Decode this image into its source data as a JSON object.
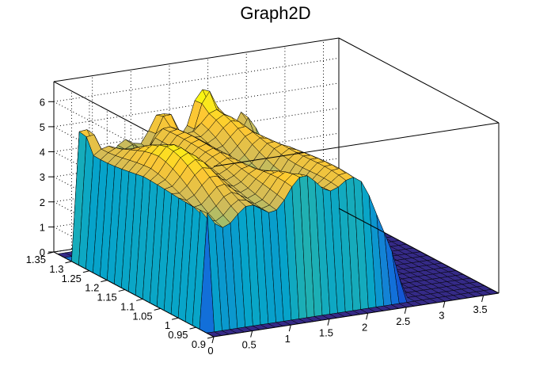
{
  "chart_data": {
    "type": "surface3d",
    "title": "Graph2D",
    "x_axis": {
      "range": [
        0,
        3.7
      ],
      "ticks": [
        "0",
        "0.5",
        "1",
        "1.5",
        "2",
        "2.5",
        "3",
        "3.5"
      ],
      "tick_values": [
        0,
        0.5,
        1,
        1.5,
        2,
        2.5,
        3,
        3.5
      ]
    },
    "y_axis": {
      "range": [
        0.9,
        1.35
      ],
      "ticks": [
        "0.9",
        "0.95",
        "1",
        "1.05",
        "1.1",
        "1.15",
        "1.2",
        "1.25",
        "1.3",
        "1.35"
      ],
      "tick_values": [
        0.9,
        0.95,
        1.0,
        1.05,
        1.1,
        1.15,
        1.2,
        1.25,
        1.3,
        1.35
      ]
    },
    "z_axis": {
      "range": [
        0,
        6.8
      ],
      "ticks": [
        "0",
        "1",
        "2",
        "3",
        "4",
        "5",
        "6"
      ],
      "tick_values": [
        0,
        1,
        2,
        3,
        4,
        5,
        6
      ]
    },
    "grid": true,
    "palette": [
      "#352a87",
      "#0f5cdd",
      "#1481d6",
      "#06a4ca",
      "#2eb7a4",
      "#87bf77",
      "#d1bb59",
      "#fec832",
      "#f9fb0e"
    ],
    "surface": {
      "x_step": 0.1,
      "y_step": 0.02,
      "description_plateau_height_approx": 4.5,
      "x_extent_nonzero": [
        0,
        2.6
      ],
      "y_extent_nonzero": [
        0.93,
        1.31
      ]
    }
  }
}
